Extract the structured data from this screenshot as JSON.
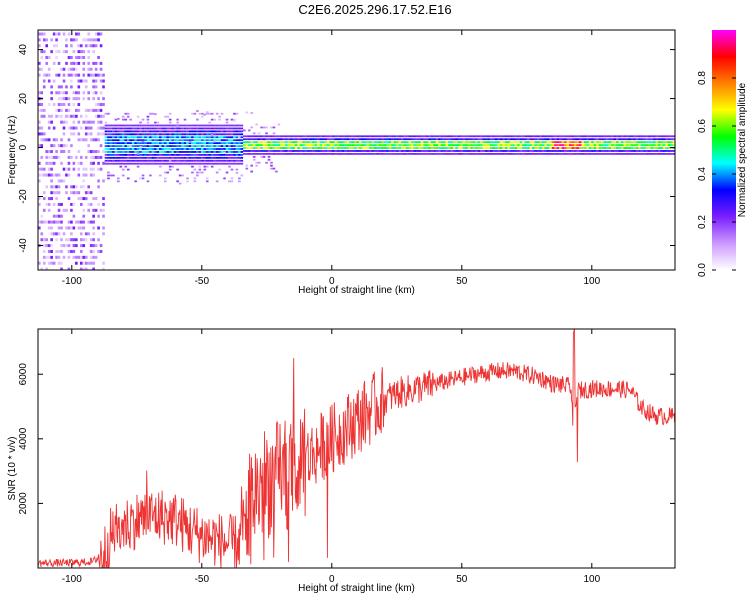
{
  "title": "C2E6.2025.296.17.52.E16",
  "chart_data": [
    {
      "type": "heatmap",
      "xlabel": "Height of straight line (km)",
      "ylabel": "Frequency (Hz)",
      "xlim": [
        -113,
        132
      ],
      "ylim": [
        -50,
        48
      ],
      "xticks": [
        -100,
        -50,
        0,
        50,
        100
      ],
      "yticks": [
        -40,
        -20,
        0,
        20,
        40
      ],
      "grid": false,
      "colorbar": {
        "label": "Normalized spectral amplitude",
        "range": [
          0,
          1
        ],
        "ticks": [
          0.0,
          0.2,
          0.4,
          0.6,
          0.8
        ],
        "colors": [
          "#ffffff",
          "#cc99ff",
          "#7a1fff",
          "#0000ff",
          "#00ffff",
          "#00ff00",
          "#ffff00",
          "#ff8000",
          "#ff0000",
          "#ff00ff"
        ]
      },
      "features": [
        {
          "x_range": [
            -113,
            -88
          ],
          "freq_range": [
            -50,
            48
          ],
          "amplitude": "low, broadband noise"
        },
        {
          "x_range": [
            -88,
            -35
          ],
          "freq_range": [
            -8,
            8
          ],
          "amplitude": "0.2-0.5 band"
        },
        {
          "x_range": [
            -35,
            132
          ],
          "freq_range": [
            -2,
            3
          ],
          "amplitude": "0.4-0.8 narrow band near 0 Hz"
        },
        {
          "x_range": [
            84,
            96
          ],
          "freq_center": 1,
          "amplitude": "up to 0.9"
        }
      ]
    },
    {
      "type": "line",
      "xlabel": "Height of straight line (km)",
      "ylabel": "SNR (10 * v/v)",
      "xlim": [
        -113,
        132
      ],
      "ylim": [
        0,
        7400
      ],
      "xticks": [
        -100,
        -50,
        0,
        50,
        100
      ],
      "yticks": [
        2000,
        4000,
        6000
      ],
      "grid": false,
      "series": [
        {
          "color": "#ee3333",
          "x": [
            -113,
            -100,
            -92,
            -88,
            -85,
            -80,
            -75,
            -70,
            -65,
            -60,
            -55,
            -50,
            -45,
            -40,
            -35,
            -33,
            -30,
            -25,
            -20,
            -15,
            -13,
            -10,
            -5,
            0,
            5,
            10,
            15,
            20,
            25,
            30,
            35,
            40,
            45,
            50,
            55,
            60,
            65,
            70,
            75,
            80,
            85,
            90,
            92,
            93,
            94,
            95,
            100,
            105,
            110,
            115,
            118,
            120,
            125,
            130,
            132
          ],
          "values": [
            150,
            160,
            200,
            400,
            1000,
            1300,
            1500,
            1600,
            1600,
            1500,
            1200,
            1000,
            900,
            750,
            800,
            1600,
            2300,
            2700,
            2800,
            2800,
            2600,
            3300,
            3700,
            4000,
            4300,
            4600,
            4900,
            5200,
            5400,
            5500,
            5600,
            5700,
            5800,
            5900,
            6000,
            6050,
            6100,
            6100,
            6000,
            5900,
            5700,
            5650,
            5600,
            4000,
            5200,
            5500,
            5550,
            5550,
            5550,
            5500,
            5100,
            4900,
            4700,
            4700,
            4700
          ]
        }
      ]
    }
  ]
}
